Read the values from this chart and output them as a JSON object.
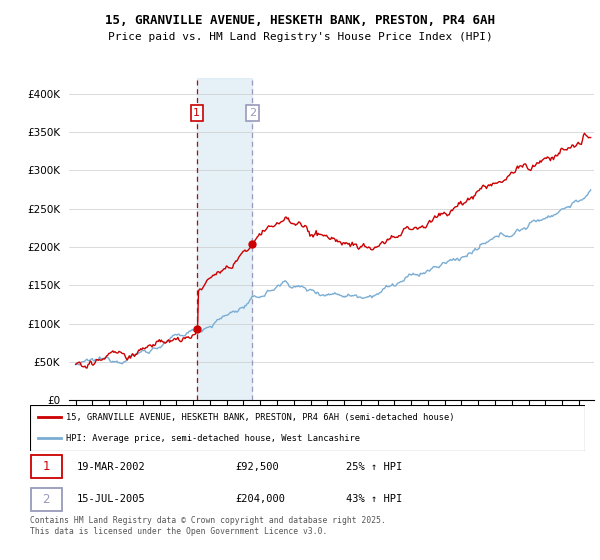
{
  "title_line1": "15, GRANVILLE AVENUE, HESKETH BANK, PRESTON, PR4 6AH",
  "title_line2": "Price paid vs. HM Land Registry's House Price Index (HPI)",
  "ylim": [
    0,
    420000
  ],
  "yticks": [
    0,
    50000,
    100000,
    150000,
    200000,
    250000,
    300000,
    350000,
    400000
  ],
  "ytick_labels": [
    "£0",
    "£50K",
    "£100K",
    "£150K",
    "£200K",
    "£250K",
    "£300K",
    "£350K",
    "£400K"
  ],
  "marker1_date": 2002.22,
  "marker1_price": 92500,
  "marker1_text": "19-MAR-2002",
  "marker1_amount": "£92,500",
  "marker1_hpi": "25% ↑ HPI",
  "marker2_date": 2005.54,
  "marker2_price": 204000,
  "marker2_text": "15-JUL-2005",
  "marker2_amount": "£204,000",
  "marker2_hpi": "43% ↑ HPI",
  "legend_line1": "15, GRANVILLE AVENUE, HESKETH BANK, PRESTON, PR4 6AH (semi-detached house)",
  "legend_line2": "HPI: Average price, semi-detached house, West Lancashire",
  "footnote": "Contains HM Land Registry data © Crown copyright and database right 2025.\nThis data is licensed under the Open Government Licence v3.0.",
  "red_color": "#cc0000",
  "blue_color": "#7aadd4",
  "shade_color": "#daeaf4",
  "vline1_color": "#cc0000",
  "vline2_color": "#9999bb",
  "box1_color": "#cc0000",
  "box2_color": "#9999bb",
  "xlim_left": 1994.6,
  "xlim_right": 2025.9
}
